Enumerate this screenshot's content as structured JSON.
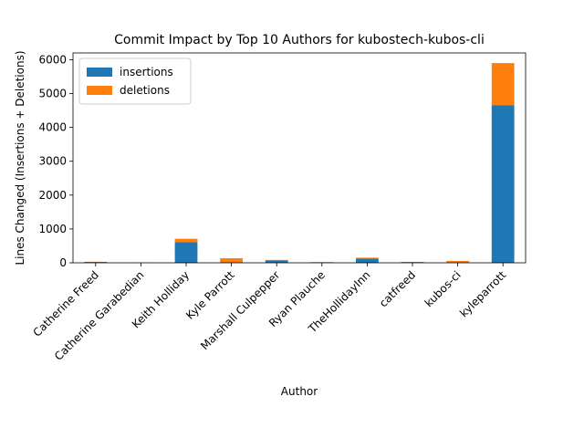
{
  "chart_data": {
    "type": "bar",
    "stacked": true,
    "title": "Commit Impact by Top 10 Authors for kubostech-kubos-cli",
    "xlabel": "Author",
    "ylabel": "Lines Changed (Insertions + Deletions)",
    "ylim": [
      0,
      6200
    ],
    "yticks": [
      0,
      1000,
      2000,
      3000,
      4000,
      5000,
      6000
    ],
    "categories": [
      "Catherine Freed",
      "Catherine Garabedian",
      "Keith Holliday",
      "Kyle Parrott",
      "Marshall Culpepper",
      "Ryan Plauche",
      "TheHollidayInn",
      "catfreed",
      "kubos-ci",
      "kyleparrott"
    ],
    "series": [
      {
        "name": "insertions",
        "color": "#1f77b4",
        "values": [
          25,
          3,
          610,
          10,
          75,
          12,
          130,
          22,
          20,
          4650
        ]
      },
      {
        "name": "deletions",
        "color": "#ff7f0e",
        "values": [
          5,
          1,
          100,
          125,
          10,
          8,
          20,
          6,
          35,
          1250
        ]
      }
    ],
    "legend_position": "top-left",
    "grid": false
  }
}
